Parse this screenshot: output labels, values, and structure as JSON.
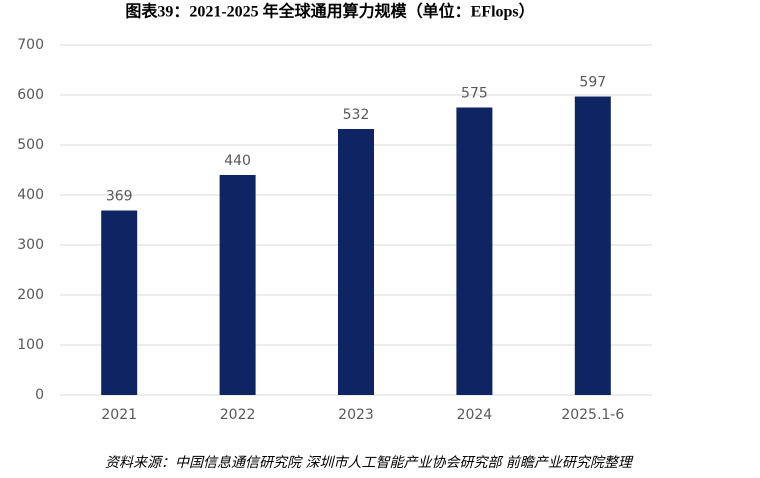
{
  "chart_data": {
    "type": "bar",
    "title": "图表39：2021-2025 年全球通用算力规模（单位：EFlops）",
    "categories": [
      "2021",
      "2022",
      "2023",
      "2024",
      "2025.1-6"
    ],
    "values": [
      369,
      440,
      532,
      575,
      597
    ],
    "color": "#0f2462",
    "ylim": [
      0,
      700
    ],
    "yticks": [
      0,
      100,
      200,
      300,
      400,
      500,
      600,
      700
    ],
    "grid": true,
    "source": "资料来源：中国信息通信研究院 深圳市人工智能产业协会研究部 前瞻产业研究院整理"
  }
}
